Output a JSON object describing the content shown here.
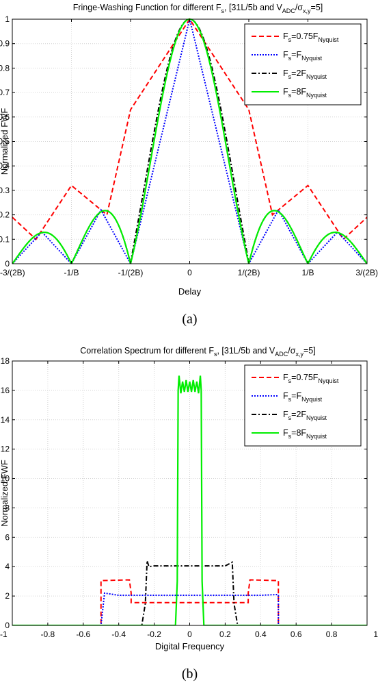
{
  "chart_data": [
    {
      "id": "a",
      "type": "line",
      "title": "Fringe-Washing Function for different F",
      "title_sub": "s",
      "title_rest": ", [31L/5b and V",
      "title_sub2": "ADC",
      "title_rest2": "/σ",
      "title_sub3": "x,y",
      "title_rest3": "=5]",
      "xlabel": "Delay",
      "ylabel": "Normalized FWF",
      "xlim": [
        -3,
        3
      ],
      "ylim": [
        0,
        1
      ],
      "x_ticks": [
        -3,
        -2,
        -1,
        0,
        1,
        2,
        3
      ],
      "x_tick_labels": [
        "-3/(2B)",
        "-1/B",
        "-1/(2B)",
        "0",
        "1/(2B)",
        "1/B",
        "3/(2B)"
      ],
      "y_ticks": [
        0,
        0.1,
        0.2,
        0.3,
        0.4,
        0.5,
        0.6,
        0.7,
        0.8,
        0.9,
        1
      ],
      "y_tick_labels": [
        "0",
        "0.1",
        "0.2",
        "0.3",
        "0.4",
        "0.5",
        "0.6",
        "0.7",
        "0.8",
        "0.9",
        "1"
      ],
      "grid": true,
      "legend_position": "top-right",
      "caption": "(a)",
      "series": [
        {
          "name_main": "F",
          "name_sub": "s",
          "name_eq": "=0.75F",
          "name_sub2": "Nyquist",
          "color": "#ff0000",
          "dash": "7,4",
          "x": [
            -3,
            -2.6,
            -2,
            -1.4,
            -1,
            0,
            1,
            1.4,
            2,
            2.6,
            3
          ],
          "y": [
            0.19,
            0.1,
            0.32,
            0.2,
            0.63,
            1.0,
            0.63,
            0.2,
            0.32,
            0.1,
            0.19
          ]
        },
        {
          "name_main": "F",
          "name_sub": "s",
          "name_eq": "=F",
          "name_sub2": "Nyquist",
          "color": "#0000ff",
          "dash": "2,2",
          "x": [
            -3,
            -2.5,
            -2,
            -1.5,
            -1,
            0,
            1,
            1.5,
            2,
            2.5,
            3
          ],
          "y": [
            0.0,
            0.13,
            0.0,
            0.22,
            0.0,
            1.0,
            0.0,
            0.22,
            0.0,
            0.13,
            0.0
          ],
          "shape": "poly"
        },
        {
          "name_main": "F",
          "name_sub": "s",
          "name_eq": "=2F",
          "name_sub2": "Nyquist",
          "color": "#000000",
          "dash": "7,3,2,3",
          "shape": "sinc",
          "amp": 1.0
        },
        {
          "name_main": "F",
          "name_sub": "s",
          "name_eq": "=8F",
          "name_sub2": "Nyquist",
          "color": "#00ee00",
          "dash": "",
          "shape": "sinc",
          "amp": 1.0
        }
      ]
    },
    {
      "id": "b",
      "type": "line",
      "title": "Correlation Spectrum for different F",
      "title_sub": "s",
      "title_rest": ", [31L/5b and V",
      "title_sub2": "ADC",
      "title_rest2": "/σ",
      "title_sub3": "x,y",
      "title_rest3": "=5]",
      "xlabel": "Digital Frequency",
      "ylabel": "Normalized FWF",
      "xlim": [
        -1,
        1
      ],
      "ylim": [
        0,
        18
      ],
      "x_ticks": [
        -1,
        -0.8,
        -0.6,
        -0.4,
        -0.2,
        0,
        0.2,
        0.4,
        0.6,
        0.8,
        1
      ],
      "x_tick_labels": [
        "-1",
        "-0.8",
        "-0.6",
        "-0.4",
        "-0.2",
        "0",
        "0.2",
        "0.4",
        "0.6",
        "0.8",
        "1"
      ],
      "y_ticks": [
        0,
        2,
        4,
        6,
        8,
        10,
        12,
        14,
        16,
        18
      ],
      "y_tick_labels": [
        "0",
        "2",
        "4",
        "6",
        "8",
        "10",
        "12",
        "14",
        "16",
        "18"
      ],
      "grid": true,
      "legend_position": "top-right",
      "caption": "(b)",
      "series": [
        {
          "name_main": "F",
          "name_sub": "s",
          "name_eq": "=0.75F",
          "name_sub2": "Nyquist",
          "color": "#ff0000",
          "dash": "7,4",
          "x": [
            -1,
            -0.51,
            -0.5,
            -0.5,
            -0.34,
            -0.33,
            -0.33,
            0.33,
            0.33,
            0.34,
            0.5,
            0.5,
            0.51,
            1
          ],
          "y": [
            0,
            0,
            0,
            3.05,
            3.1,
            2.2,
            1.55,
            1.55,
            2.2,
            3.1,
            3.05,
            0,
            0,
            0
          ]
        },
        {
          "name_main": "F",
          "name_sub": "s",
          "name_eq": "=F",
          "name_sub2": "Nyquist",
          "color": "#0000ff",
          "dash": "2,2",
          "x": [
            -1,
            -0.5,
            -0.5,
            -0.48,
            -0.4,
            0,
            0.4,
            0.49,
            0.5,
            0.5,
            1
          ],
          "y": [
            0,
            0,
            0,
            2.2,
            2.05,
            2.05,
            2.05,
            2.1,
            2.05,
            0,
            0
          ]
        },
        {
          "name_main": "F",
          "name_sub": "s",
          "name_eq": "=2F",
          "name_sub2": "Nyquist",
          "color": "#000000",
          "dash": "7,3,2,3",
          "x": [
            -1,
            -0.27,
            -0.25,
            -0.24,
            -0.23,
            -0.2,
            0,
            0.2,
            0.24,
            0.25,
            0.27,
            1
          ],
          "y": [
            0,
            0,
            1.5,
            4.4,
            4.0,
            4.05,
            4.05,
            4.05,
            4.3,
            1.5,
            0,
            0
          ]
        },
        {
          "name_main": "F",
          "name_sub": "s",
          "name_eq": "=8F",
          "name_sub2": "Nyquist",
          "color": "#00ee00",
          "dash": "",
          "x": [
            -1,
            -0.08,
            -0.07,
            -0.065,
            -0.06,
            -0.05,
            -0.04,
            -0.03,
            -0.02,
            -0.01,
            0,
            0.01,
            0.02,
            0.03,
            0.04,
            0.05,
            0.06,
            0.065,
            0.07,
            0.08,
            1
          ],
          "y": [
            0,
            0,
            3.0,
            16.0,
            17.0,
            15.8,
            16.6,
            15.9,
            16.7,
            15.9,
            16.6,
            15.9,
            16.7,
            15.9,
            16.6,
            15.8,
            17.0,
            16.0,
            3.0,
            0,
            0
          ]
        }
      ]
    }
  ]
}
